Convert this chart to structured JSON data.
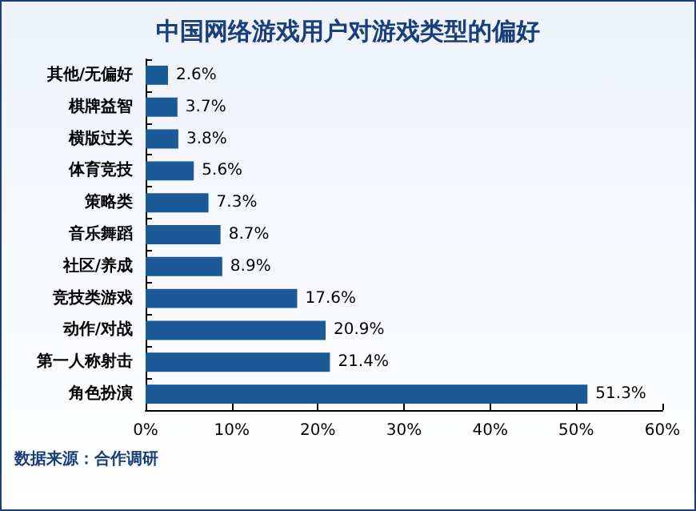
{
  "chart_data": {
    "type": "bar",
    "orientation": "horizontal",
    "title": "中国网络游戏用户对游戏类型的偏好",
    "categories": [
      "其他/无偏好",
      "棋牌益智",
      "横版过关",
      "体育竞技",
      "策略类",
      "音乐舞蹈",
      "社区/养成",
      "竞技类游戏",
      "动作/对战",
      "第一人称射击",
      "角色扮演"
    ],
    "values": [
      2.6,
      3.7,
      3.8,
      5.6,
      7.3,
      8.7,
      8.9,
      17.6,
      20.9,
      21.4,
      51.3
    ],
    "value_labels": [
      "2.6%",
      "3.7%",
      "3.8%",
      "5.6%",
      "7.3%",
      "8.7%",
      "8.9%",
      "17.6%",
      "20.9%",
      "21.4%",
      "51.3%"
    ],
    "color": "#1b5a96",
    "xlim": [
      0,
      60
    ],
    "xticks": [
      {
        "value": 0,
        "label": "0%"
      },
      {
        "value": 10,
        "label": "10%"
      },
      {
        "value": 20,
        "label": "20%"
      },
      {
        "value": 30,
        "label": "30%"
      },
      {
        "value": 40,
        "label": "40%"
      },
      {
        "value": 50,
        "label": "50%"
      },
      {
        "value": 60,
        "label": "60%"
      }
    ],
    "grid": false,
    "annotations": [
      "数据来源：合作调研"
    ]
  }
}
